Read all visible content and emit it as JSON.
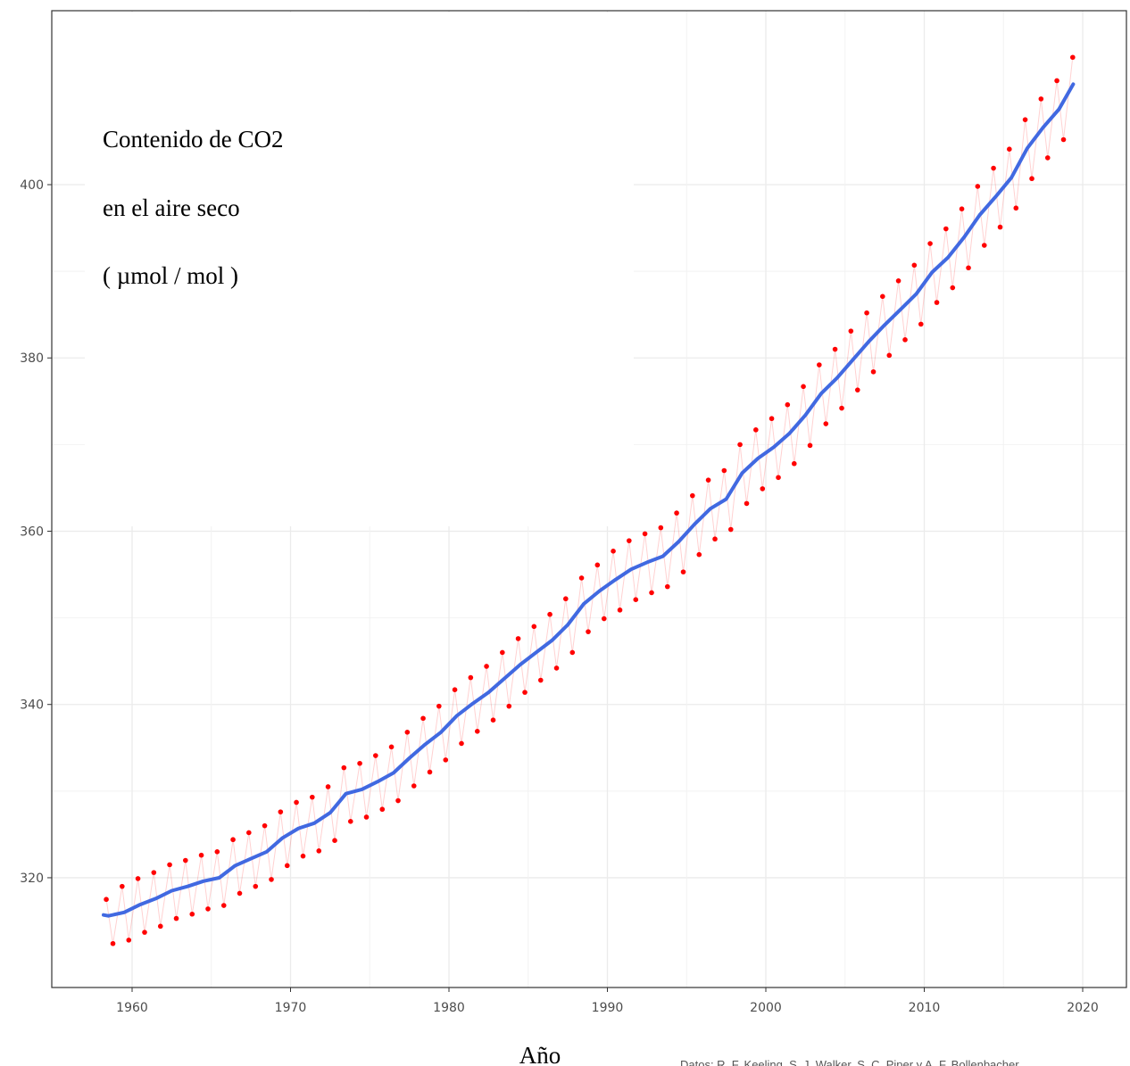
{
  "chart_data": {
    "type": "line",
    "annotations": [
      "Contenido de CO2",
      "en el aire seco",
      "( µmol / mol )"
    ],
    "x_label": "Año",
    "source": "Datos: R. F. Keeling, S. J. Walker, S. C. Piper y A. F. Bollenbacher",
    "xlim": [
      1954.93,
      2022.76
    ],
    "xticks": [
      1960,
      1970,
      1980,
      1990,
      2000,
      2010,
      2020
    ],
    "ylim": [
      307.33,
      420.08
    ],
    "yticks": [
      320,
      340,
      360,
      380,
      400
    ],
    "grid": true,
    "series": [
      {
        "style": "points",
        "color": "#ff0000",
        "x": [
          1958.37,
          1958.79,
          1959.37,
          1959.79,
          1960.37,
          1960.79,
          1961.37,
          1961.79,
          1962.37,
          1962.79,
          1963.37,
          1963.79,
          1964.37,
          1964.79,
          1965.37,
          1965.79,
          1966.37,
          1966.79,
          1967.37,
          1967.79,
          1968.37,
          1968.79,
          1969.37,
          1969.79,
          1970.37,
          1970.79,
          1971.37,
          1971.79,
          1972.37,
          1972.79,
          1973.37,
          1973.79,
          1974.37,
          1974.79,
          1975.37,
          1975.79,
          1976.37,
          1976.79,
          1977.37,
          1977.79,
          1978.37,
          1978.79,
          1979.37,
          1979.79,
          1980.37,
          1980.79,
          1981.37,
          1981.79,
          1982.37,
          1982.79,
          1983.37,
          1983.79,
          1984.37,
          1984.79,
          1985.37,
          1985.79,
          1986.37,
          1986.79,
          1987.37,
          1987.79,
          1988.37,
          1988.79,
          1989.37,
          1989.79,
          1990.37,
          1990.79,
          1991.37,
          1991.79,
          1992.37,
          1992.79,
          1993.37,
          1993.79,
          1994.37,
          1994.79,
          1995.37,
          1995.79,
          1996.37,
          1996.79,
          1997.37,
          1997.79,
          1998.37,
          1998.79,
          1999.37,
          1999.79,
          2000.37,
          2000.79,
          2001.37,
          2001.79,
          2002.37,
          2002.79,
          2003.37,
          2003.79,
          2004.37,
          2004.79,
          2005.37,
          2005.79,
          2006.37,
          2006.79,
          2007.37,
          2007.79,
          2008.37,
          2008.79,
          2009.37,
          2009.79,
          2010.37,
          2010.79,
          2011.37,
          2011.79,
          2012.37,
          2012.79,
          2013.37,
          2013.79,
          2014.37,
          2014.79,
          2015.37,
          2015.79,
          2016.37,
          2016.79,
          2017.37,
          2017.79,
          2018.37,
          2018.79,
          2019.37
        ],
        "values": [
          317.5,
          312.4,
          319.0,
          312.8,
          319.9,
          313.7,
          320.6,
          314.4,
          321.5,
          315.3,
          322.0,
          315.8,
          322.6,
          316.4,
          323.0,
          316.8,
          324.4,
          318.2,
          325.2,
          319.0,
          326.0,
          319.8,
          327.6,
          321.4,
          328.7,
          322.5,
          329.3,
          323.1,
          330.5,
          324.3,
          332.7,
          326.5,
          333.2,
          327.0,
          334.1,
          327.9,
          335.1,
          328.9,
          336.8,
          330.6,
          338.4,
          332.2,
          339.8,
          333.6,
          341.7,
          335.5,
          343.1,
          336.9,
          344.4,
          338.2,
          346.0,
          339.8,
          347.6,
          341.4,
          349.0,
          342.8,
          350.4,
          344.2,
          352.2,
          346.0,
          354.6,
          348.4,
          356.1,
          349.9,
          357.7,
          350.9,
          358.9,
          352.1,
          359.7,
          352.9,
          360.4,
          353.6,
          362.1,
          355.3,
          364.1,
          357.3,
          365.9,
          359.1,
          367.0,
          360.2,
          370.0,
          363.2,
          371.7,
          364.9,
          373.0,
          366.2,
          374.6,
          367.8,
          376.7,
          369.9,
          379.2,
          372.4,
          381.0,
          374.2,
          383.1,
          376.3,
          385.2,
          378.4,
          387.1,
          380.3,
          388.9,
          382.1,
          390.7,
          383.9,
          393.2,
          386.4,
          394.9,
          388.1,
          397.2,
          390.4,
          399.8,
          393.0,
          401.9,
          395.1,
          404.1,
          397.3,
          407.5,
          400.7,
          409.9,
          403.1,
          412.0,
          405.2,
          414.7
        ]
      },
      {
        "style": "smooth",
        "color": "#4169e1",
        "x": [
          1958.2,
          1958.5,
          1959.5,
          1960.5,
          1961.5,
          1962.5,
          1963.5,
          1964.5,
          1965.5,
          1966.5,
          1967.5,
          1968.5,
          1969.5,
          1970.5,
          1971.5,
          1972.5,
          1973.5,
          1974.5,
          1975.5,
          1976.5,
          1977.5,
          1978.5,
          1979.5,
          1980.5,
          1981.5,
          1982.5,
          1983.5,
          1984.5,
          1985.5,
          1986.5,
          1987.5,
          1988.5,
          1989.5,
          1990.5,
          1991.5,
          1992.5,
          1993.5,
          1994.5,
          1995.5,
          1996.5,
          1997.5,
          1998.5,
          1999.5,
          2000.5,
          2001.5,
          2002.5,
          2003.5,
          2004.5,
          2005.5,
          2006.5,
          2007.5,
          2008.5,
          2009.5,
          2010.5,
          2011.5,
          2012.5,
          2013.5,
          2014.5,
          2015.5,
          2016.5,
          2017.5,
          2018.5,
          2019.4
        ],
        "values": [
          315.7,
          315.6,
          316.0,
          316.9,
          317.6,
          318.5,
          319.0,
          319.6,
          320.0,
          321.4,
          322.2,
          323.0,
          324.6,
          325.7,
          326.3,
          327.5,
          329.7,
          330.2,
          331.1,
          332.1,
          333.8,
          335.4,
          336.8,
          338.7,
          340.1,
          341.4,
          343.0,
          344.6,
          346.0,
          347.4,
          349.2,
          351.6,
          353.1,
          354.4,
          355.6,
          356.4,
          357.1,
          358.8,
          360.8,
          362.6,
          363.7,
          366.7,
          368.4,
          369.7,
          371.3,
          373.4,
          375.9,
          377.7,
          379.8,
          381.9,
          383.8,
          385.6,
          387.4,
          389.9,
          391.6,
          393.9,
          396.5,
          398.6,
          400.8,
          404.2,
          406.6,
          408.7,
          411.6
        ]
      }
    ]
  }
}
